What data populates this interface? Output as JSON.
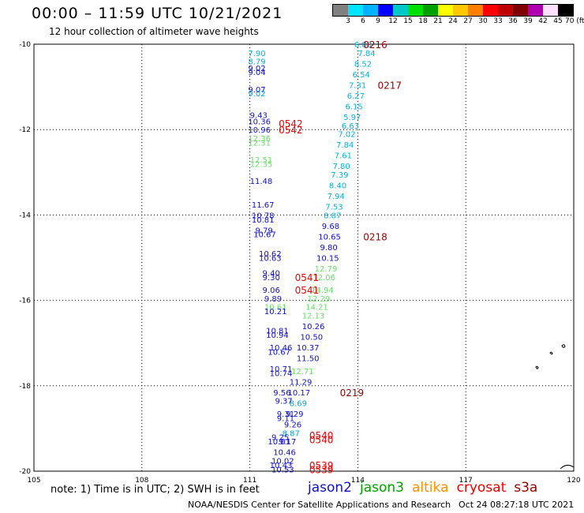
{
  "header": {
    "title": "00:00 – 11:59 UTC 10/21/2021",
    "subtitle": "12 hour collection of altimeter wave heights"
  },
  "legend": {
    "colors": [
      "#808080",
      "#00e5ff",
      "#00b2ff",
      "#0000ff",
      "#00c8c8",
      "#00e000",
      "#00a000",
      "#ffff00",
      "#ffc800",
      "#ff8000",
      "#ff0000",
      "#c00000",
      "#800000",
      "#b000b0",
      "#ffe0ff",
      "#000000"
    ],
    "labels": [
      "3",
      "6",
      "9",
      "12",
      "15",
      "18",
      "21",
      "24",
      "27",
      "30",
      "33",
      "36",
      "39",
      "42",
      "45",
      "70 (ft)"
    ]
  },
  "axes": {
    "x_ticks": [
      "105",
      "108",
      "111",
      "114",
      "117",
      "120"
    ],
    "y_ticks": [
      "-10",
      "-12",
      "-14",
      "-16",
      "-18",
      "-20"
    ]
  },
  "map_data": {
    "lon_range": [
      105,
      120
    ],
    "lat_range": [
      -20,
      -10
    ],
    "series_colors": {
      "jason2": "#1010cc",
      "jason3": "#00c000",
      "altika": "#ff9000",
      "cryosat": "#ee0000",
      "s3a": "#990000",
      "light": "#00b4e0",
      "lightgreen": "#66e066",
      "mid": "#00a8d8"
    },
    "labels": [
      {
        "lon": 113.9,
        "lat": -10.0,
        "v": "6.80",
        "c": "light"
      },
      {
        "lon": 114.0,
        "lat": -10.2,
        "v": "7.84",
        "c": "light"
      },
      {
        "lon": 113.9,
        "lat": -10.45,
        "v": "8.52",
        "c": "light"
      },
      {
        "lon": 113.85,
        "lat": -10.7,
        "v": "6.54",
        "c": "light"
      },
      {
        "lon": 113.75,
        "lat": -10.95,
        "v": "7.31",
        "c": "light"
      },
      {
        "lon": 113.7,
        "lat": -11.2,
        "v": "6.27",
        "c": "light"
      },
      {
        "lon": 113.65,
        "lat": -11.45,
        "v": "6.15",
        "c": "light"
      },
      {
        "lon": 113.6,
        "lat": -11.7,
        "v": "5.97",
        "c": "light"
      },
      {
        "lon": 113.55,
        "lat": -11.9,
        "v": "6.63",
        "c": "light"
      },
      {
        "lon": 113.45,
        "lat": -12.1,
        "v": "7.02",
        "c": "light"
      },
      {
        "lon": 113.4,
        "lat": -12.35,
        "v": "7.84",
        "c": "light"
      },
      {
        "lon": 113.35,
        "lat": -12.6,
        "v": "7.61",
        "c": "light"
      },
      {
        "lon": 113.3,
        "lat": -12.85,
        "v": "7.80",
        "c": "light"
      },
      {
        "lon": 113.25,
        "lat": -13.05,
        "v": "7.39",
        "c": "light"
      },
      {
        "lon": 113.2,
        "lat": -13.3,
        "v": "8.40",
        "c": "light"
      },
      {
        "lon": 113.15,
        "lat": -13.55,
        "v": "7.94",
        "c": "light"
      },
      {
        "lon": 113.1,
        "lat": -13.8,
        "v": "7.53",
        "c": "light"
      },
      {
        "lon": 113.05,
        "lat": -14.0,
        "v": "8.87",
        "c": "light"
      },
      {
        "lon": 113.0,
        "lat": -14.25,
        "v": "9.68",
        "c": "jason2"
      },
      {
        "lon": 112.9,
        "lat": -14.5,
        "v": "10.65",
        "c": "jason2"
      },
      {
        "lon": 112.95,
        "lat": -14.75,
        "v": "9.80",
        "c": "jason2"
      },
      {
        "lon": 112.85,
        "lat": -15.0,
        "v": "10.15",
        "c": "jason2"
      },
      {
        "lon": 112.8,
        "lat": -15.25,
        "v": "12.79",
        "c": "lightgreen"
      },
      {
        "lon": 112.75,
        "lat": -15.45,
        "v": "12.06",
        "c": "lightgreen"
      },
      {
        "lon": 112.7,
        "lat": -15.75,
        "v": "14.94",
        "c": "lightgreen"
      },
      {
        "lon": 112.6,
        "lat": -15.95,
        "v": "12.29",
        "c": "lightgreen"
      },
      {
        "lon": 112.55,
        "lat": -16.15,
        "v": "14.21",
        "c": "lightgreen"
      },
      {
        "lon": 112.45,
        "lat": -16.35,
        "v": "12.13",
        "c": "lightgreen"
      },
      {
        "lon": 112.45,
        "lat": -16.6,
        "v": "10.26",
        "c": "jason2"
      },
      {
        "lon": 112.4,
        "lat": -16.85,
        "v": "10.50",
        "c": "jason2"
      },
      {
        "lon": 112.3,
        "lat": -17.1,
        "v": "10.37",
        "c": "jason2"
      },
      {
        "lon": 112.3,
        "lat": -17.35,
        "v": "11.50",
        "c": "jason2"
      },
      {
        "lon": 112.15,
        "lat": -17.65,
        "v": "12.71",
        "c": "lightgreen"
      },
      {
        "lon": 112.1,
        "lat": -17.9,
        "v": "11.29",
        "c": "jason2"
      },
      {
        "lon": 112.05,
        "lat": -18.15,
        "v": "10.17",
        "c": "jason2"
      },
      {
        "lon": 112.1,
        "lat": -18.4,
        "v": "8.69",
        "c": "mid"
      },
      {
        "lon": 112.0,
        "lat": -18.65,
        "v": "9.29",
        "c": "jason2"
      },
      {
        "lon": 111.95,
        "lat": -18.9,
        "v": "9.26",
        "c": "jason2"
      },
      {
        "lon": 111.9,
        "lat": -19.1,
        "v": "8.87",
        "c": "mid"
      },
      {
        "lon": 111.6,
        "lat": -19.2,
        "v": "9.25",
        "c": "jason2"
      },
      {
        "lon": 111.5,
        "lat": -19.3,
        "v": "10.01",
        "c": "jason2"
      },
      {
        "lon": 111.8,
        "lat": -19.3,
        "v": "9.17",
        "c": "jason2"
      },
      {
        "lon": 111.65,
        "lat": -19.55,
        "v": "10.46",
        "c": "jason2"
      },
      {
        "lon": 111.6,
        "lat": -19.75,
        "v": "10.02",
        "c": "jason2"
      },
      {
        "lon": 111.55,
        "lat": -19.85,
        "v": "10.43",
        "c": "jason2"
      },
      {
        "lon": 111.6,
        "lat": -19.95,
        "v": "10.53",
        "c": "jason2"
      },
      {
        "lon": 110.95,
        "lat": -10.2,
        "v": "7.90",
        "c": "light"
      },
      {
        "lon": 110.95,
        "lat": -10.4,
        "v": "8.79",
        "c": "light"
      },
      {
        "lon": 110.95,
        "lat": -10.55,
        "v": "9.02",
        "c": "jason2"
      },
      {
        "lon": 110.95,
        "lat": -10.65,
        "v": "9.04",
        "c": "jason2"
      },
      {
        "lon": 110.95,
        "lat": -11.05,
        "v": "9.07",
        "c": "jason2"
      },
      {
        "lon": 110.95,
        "lat": -11.15,
        "v": "9.02",
        "c": "mid"
      },
      {
        "lon": 111.0,
        "lat": -11.65,
        "v": "9.43",
        "c": "jason2"
      },
      {
        "lon": 110.95,
        "lat": -11.8,
        "v": "10.36",
        "c": "jason2"
      },
      {
        "lon": 110.95,
        "lat": -12.0,
        "v": "10.96",
        "c": "jason2"
      },
      {
        "lon": 110.95,
        "lat": -12.2,
        "v": "12.36",
        "c": "lightgreen"
      },
      {
        "lon": 110.95,
        "lat": -12.3,
        "v": "12.31",
        "c": "lightgreen"
      },
      {
        "lon": 111.0,
        "lat": -12.7,
        "v": "12.51",
        "c": "lightgreen"
      },
      {
        "lon": 111.0,
        "lat": -12.8,
        "v": "12.35",
        "c": "lightgreen"
      },
      {
        "lon": 111.0,
        "lat": -13.2,
        "v": "11.48",
        "c": "jason2"
      },
      {
        "lon": 111.05,
        "lat": -13.75,
        "v": "11.67",
        "c": "jason2"
      },
      {
        "lon": 111.05,
        "lat": -14.0,
        "v": "10.78",
        "c": "jason2"
      },
      {
        "lon": 111.05,
        "lat": -14.1,
        "v": "10.81",
        "c": "jason2"
      },
      {
        "lon": 111.15,
        "lat": -14.35,
        "v": "9.79",
        "c": "jason2"
      },
      {
        "lon": 111.1,
        "lat": -14.45,
        "v": "10.67",
        "c": "jason2"
      },
      {
        "lon": 111.25,
        "lat": -14.9,
        "v": "10.62",
        "c": "jason2"
      },
      {
        "lon": 111.25,
        "lat": -15.0,
        "v": "10.63",
        "c": "jason2"
      },
      {
        "lon": 111.35,
        "lat": -15.35,
        "v": "9.40",
        "c": "jason2"
      },
      {
        "lon": 111.35,
        "lat": -15.45,
        "v": "9.30",
        "c": "jason2"
      },
      {
        "lon": 111.35,
        "lat": -15.75,
        "v": "9.06",
        "c": "jason2"
      },
      {
        "lon": 111.4,
        "lat": -15.95,
        "v": "9.89",
        "c": "jason2"
      },
      {
        "lon": 111.4,
        "lat": -16.15,
        "v": "10.61",
        "c": "lightgreen"
      },
      {
        "lon": 111.4,
        "lat": -16.25,
        "v": "10.21",
        "c": "jason2"
      },
      {
        "lon": 111.45,
        "lat": -16.7,
        "v": "10.81",
        "c": "jason2"
      },
      {
        "lon": 111.45,
        "lat": -16.8,
        "v": "10.94",
        "c": "jason2"
      },
      {
        "lon": 111.55,
        "lat": -17.1,
        "v": "10.46",
        "c": "jason2"
      },
      {
        "lon": 111.5,
        "lat": -17.2,
        "v": "10.67",
        "c": "jason2"
      },
      {
        "lon": 111.55,
        "lat": -17.6,
        "v": "10.71",
        "c": "jason2"
      },
      {
        "lon": 111.55,
        "lat": -17.7,
        "v": "10.74",
        "c": "jason2"
      },
      {
        "lon": 111.65,
        "lat": -18.15,
        "v": "9.56",
        "c": "jason2"
      },
      {
        "lon": 111.7,
        "lat": -18.35,
        "v": "9.37",
        "c": "jason2"
      },
      {
        "lon": 111.75,
        "lat": -18.65,
        "v": "9.31",
        "c": "jason2"
      },
      {
        "lon": 111.75,
        "lat": -18.75,
        "v": "9.11",
        "c": "jason2"
      }
    ],
    "passes": [
      {
        "lon": 114.15,
        "lat": -10.0,
        "v": "0216",
        "c": "s3a"
      },
      {
        "lon": 114.55,
        "lat": -10.95,
        "v": "0217",
        "c": "s3a"
      },
      {
        "lon": 114.15,
        "lat": -14.5,
        "v": "0218",
        "c": "s3a"
      },
      {
        "lon": 113.5,
        "lat": -18.15,
        "v": "0219",
        "c": "s3a"
      },
      {
        "lon": 111.8,
        "lat": -11.85,
        "v": "0542",
        "c": "cryosat"
      },
      {
        "lon": 111.8,
        "lat": -12.0,
        "v": "0542",
        "c": "cryosat"
      },
      {
        "lon": 112.25,
        "lat": -15.45,
        "v": "0541",
        "c": "cryosat"
      },
      {
        "lon": 112.25,
        "lat": -15.75,
        "v": "0541",
        "c": "cryosat"
      },
      {
        "lon": 112.65,
        "lat": -19.15,
        "v": "0540",
        "c": "cryosat"
      },
      {
        "lon": 112.65,
        "lat": -19.25,
        "v": "0540",
        "c": "cryosat"
      },
      {
        "lon": 112.65,
        "lat": -19.85,
        "v": "0539",
        "c": "cryosat"
      },
      {
        "lon": 112.65,
        "lat": -19.95,
        "v": "0539",
        "c": "cryosat"
      }
    ]
  },
  "footer": {
    "note": "note: 1) Time is in UTC; 2) SWH is in feet",
    "satellites": [
      {
        "name": "jason2",
        "color": "#1010cc"
      },
      {
        "name": "jason3",
        "color": "#00a000"
      },
      {
        "name": "altika",
        "color": "#ff9000"
      },
      {
        "name": "cryosat",
        "color": "#ee0000"
      },
      {
        "name": "s3a",
        "color": "#990000"
      }
    ],
    "credit": "NOAA/NESDIS Center for Satellite Applications and Research",
    "timestamp": "Oct 24 08:27:18 UTC 2021"
  }
}
